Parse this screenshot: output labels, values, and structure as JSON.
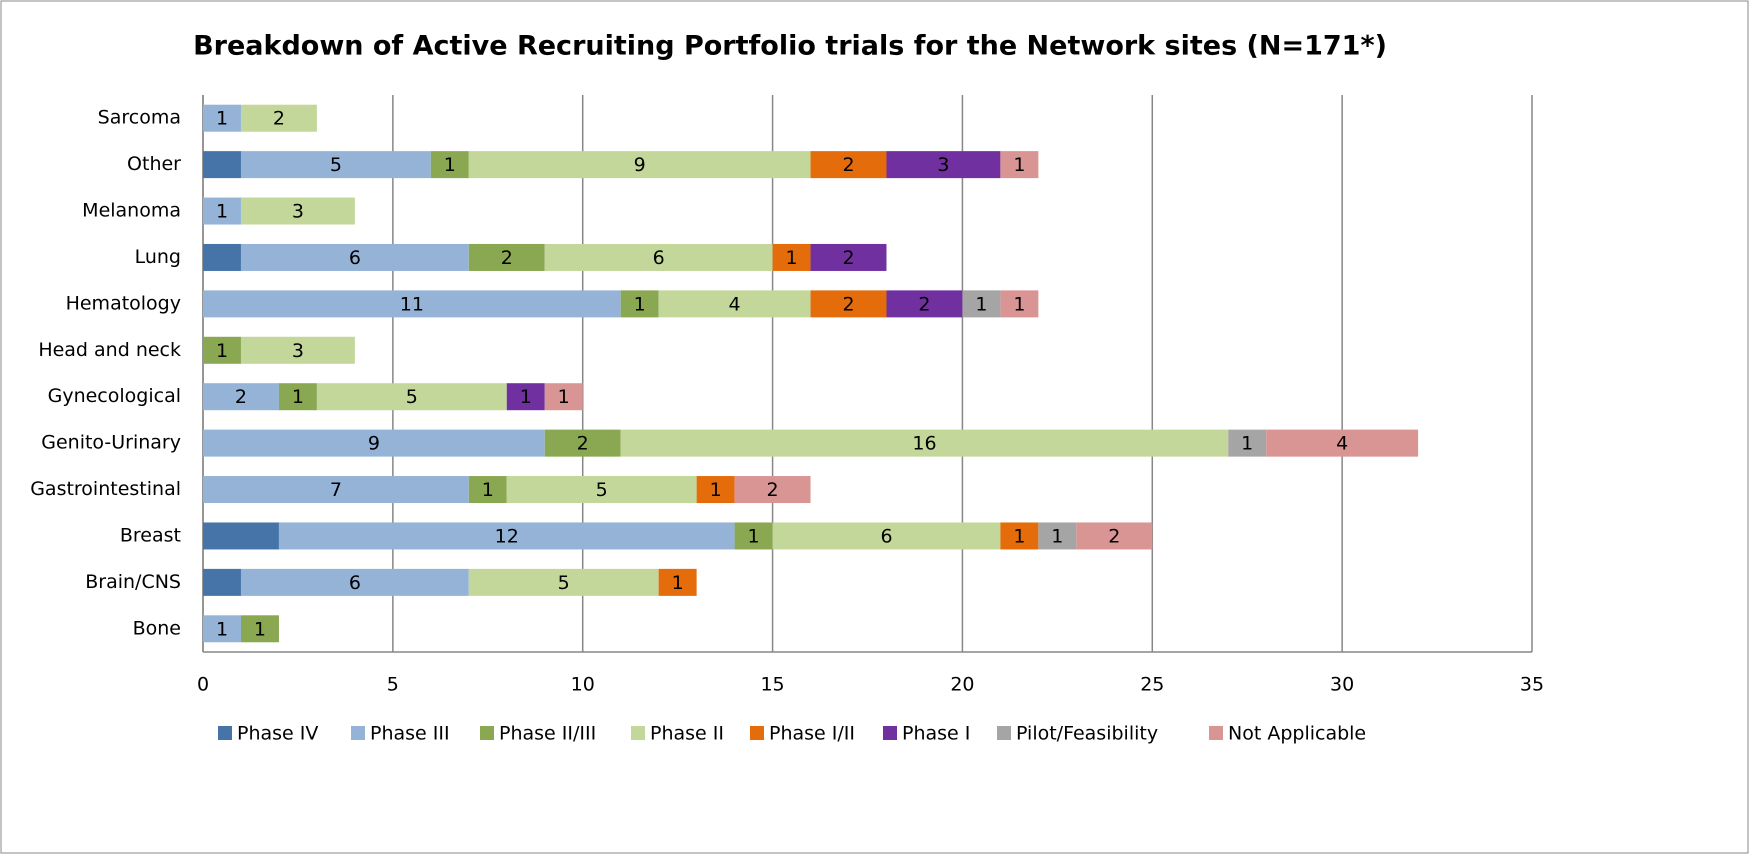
{
  "chart_data": {
    "type": "stacked_barh",
    "title": "Breakdown of Active Recruiting Portfolio trials for the Network sites  (N=171*)",
    "categories": [
      "Bone",
      "Brain/CNS",
      "Breast",
      "Gastrointestinal",
      "Genito-Urinary",
      "Gynecological",
      "Head and neck",
      "Hematology",
      "Lung",
      "Melanoma",
      "Other",
      "Sarcoma"
    ],
    "series": [
      {
        "name": "Phase IV",
        "color": "#4674a9",
        "data_labels": false,
        "values": [
          0,
          1,
          2,
          0,
          0,
          0,
          0,
          0,
          1,
          0,
          1,
          0
        ]
      },
      {
        "name": "Phase III",
        "color": "#95b3d7",
        "values": [
          1,
          6,
          12,
          7,
          9,
          2,
          0,
          11,
          6,
          1,
          5,
          1
        ]
      },
      {
        "name": "Phase II/III",
        "color": "#8aa851",
        "values": [
          1,
          0,
          1,
          1,
          2,
          1,
          1,
          1,
          2,
          0,
          1,
          0
        ]
      },
      {
        "name": "Phase II",
        "color": "#c4d79b",
        "values": [
          0,
          5,
          6,
          5,
          16,
          5,
          3,
          4,
          6,
          3,
          9,
          2
        ]
      },
      {
        "name": "Phase I/II",
        "color": "#e46c0a",
        "values": [
          0,
          1,
          1,
          1,
          0,
          0,
          0,
          2,
          1,
          0,
          2,
          0
        ]
      },
      {
        "name": "Phase I",
        "color": "#7030a0",
        "values": [
          0,
          0,
          0,
          0,
          0,
          1,
          0,
          2,
          2,
          0,
          3,
          0
        ]
      },
      {
        "name": "Pilot/Feasibility",
        "color": "#a5a5a5",
        "values": [
          0,
          0,
          1,
          0,
          1,
          0,
          0,
          1,
          0,
          0,
          0,
          0
        ]
      },
      {
        "name": "Not Applicable",
        "color": "#d99594",
        "values": [
          0,
          0,
          2,
          2,
          4,
          1,
          0,
          1,
          0,
          0,
          1,
          0
        ]
      }
    ],
    "xlim": [
      0,
      35
    ],
    "xticks": [
      0,
      5,
      10,
      15,
      20,
      25,
      30,
      35
    ],
    "grid": true,
    "legend": "bottom"
  }
}
